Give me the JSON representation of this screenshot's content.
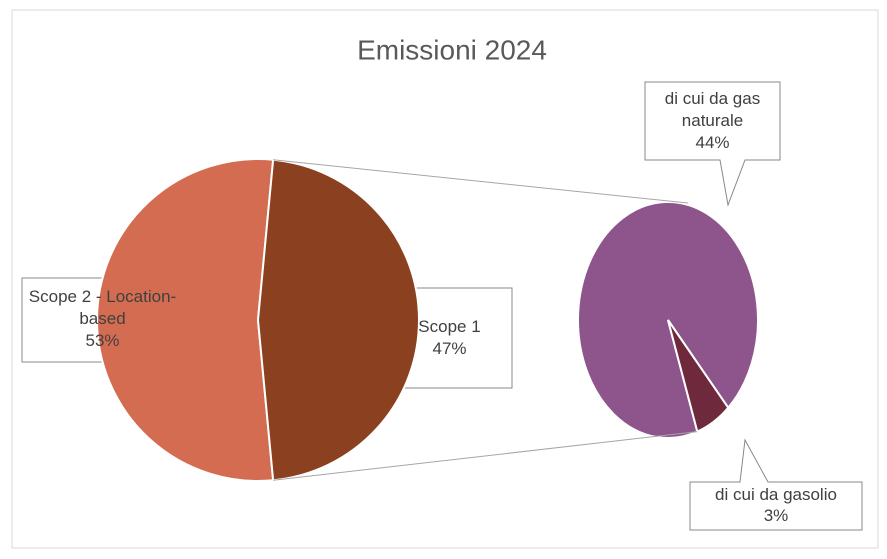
{
  "chart_data": {
    "type": "pie-of-pie",
    "title": "Emissioni 2024",
    "categories": [
      "Scope 2 - Location-based",
      "Scope 1"
    ],
    "values": [
      53,
      47
    ],
    "value_labels": [
      "53%",
      "47%"
    ],
    "colors": [
      "#d46c52",
      "#8b4020"
    ],
    "secondary": {
      "categories": [
        "di cui da gas naturale",
        "di cui da gasolio"
      ],
      "values": [
        44,
        3
      ],
      "value_labels": [
        "44%",
        "3%"
      ],
      "colors": [
        "#8e548c",
        "#6e2a3c"
      ]
    }
  }
}
